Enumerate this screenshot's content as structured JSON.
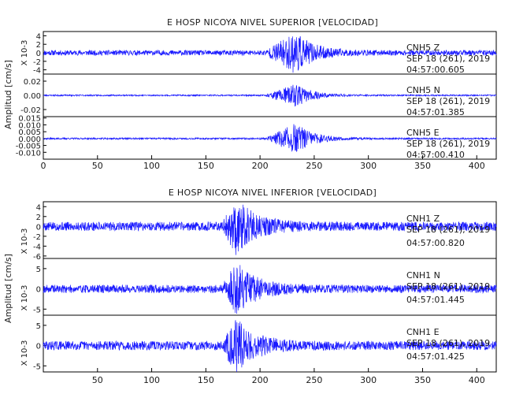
{
  "chart_data": [
    {
      "type": "line",
      "title": "E HOSP NICOYA NIVEL SUPERIOR [VELOCIDAD]",
      "ylabel": "Amplitud [cm/s]",
      "xlim": [
        0,
        418
      ],
      "xticks": [
        0,
        50,
        100,
        150,
        200,
        250,
        300,
        350,
        400
      ],
      "xtick_labels": [
        "0",
        "50",
        "100",
        "150",
        "200",
        "250",
        "300",
        "350",
        "400"
      ],
      "line_color": "#1a1aff",
      "traces": [
        {
          "component": "CNH5   Z",
          "date": "SEP 18 (261), 2019",
          "time": "04:57:00.605",
          "ylim": [
            -5,
            5
          ],
          "y_multiplier": "X 10-3",
          "yticks": [
            -4,
            -2,
            0,
            2,
            4
          ],
          "ytick_labels": [
            "-4",
            "-2",
            "0",
            "2",
            "4"
          ],
          "noise_amp": 0.6,
          "event_start": 205,
          "event_peak": 233,
          "event_amp": 4.5,
          "event_decay": 16,
          "seed": 11
        },
        {
          "component": "CNH5   N",
          "date": "SEP 18 (261), 2019",
          "time": "04:57:01.385",
          "ylim": [
            -0.03,
            0.03
          ],
          "y_multiplier": "",
          "yticks": [
            -0.02,
            0.0,
            0.02
          ],
          "ytick_labels": [
            "-0.02",
            "0.00",
            "0.02"
          ],
          "noise_amp": 0.001,
          "event_start": 205,
          "event_peak": 233,
          "event_amp": 0.016,
          "event_decay": 15,
          "seed": 23
        },
        {
          "component": "CNH5   E",
          "date": "SEP 18 (261), 2019",
          "time": "04:57:00.410",
          "ylim": [
            -0.015,
            0.016
          ],
          "y_multiplier": "",
          "yticks": [
            -0.01,
            -0.005,
            0.0,
            0.005,
            0.01,
            0.015
          ],
          "ytick_labels": [
            "-0.010",
            "-0.005",
            "0.000",
            "0.005",
            "0.010",
            "0.015"
          ],
          "noise_amp": 0.0006,
          "event_start": 205,
          "event_peak": 233,
          "event_amp": 0.011,
          "event_decay": 16,
          "seed": 37
        }
      ]
    },
    {
      "type": "line",
      "title": "E HOSP NICOYA NIVEL INFERIOR [VELOCIDAD]",
      "ylabel": "Amplitud [cm/s]",
      "xlim": [
        0,
        418
      ],
      "xticks": [
        50,
        100,
        150,
        200,
        250,
        300,
        350,
        400
      ],
      "xtick_labels": [
        "50",
        "100",
        "150",
        "200",
        "250",
        "300",
        "350",
        "400"
      ],
      "line_color": "#1a1aff",
      "traces": [
        {
          "component": "CNH1   Z",
          "date": "SEP 18 (261), 2019",
          "time": "04:57:00.820",
          "ylim": [
            -6.5,
            5
          ],
          "y_multiplier": "X 10-3",
          "yticks": [
            -6,
            -4,
            -2,
            0,
            2,
            4
          ],
          "ytick_labels": [
            "-6",
            "-4",
            "-2",
            "0",
            "2",
            "4"
          ],
          "noise_amp": 0.9,
          "event_start": 165,
          "event_peak": 178,
          "event_amp": 5.2,
          "event_decay": 18,
          "seed": 5
        },
        {
          "component": "CNH1   N",
          "date": "SEP 18 (261), 2019",
          "time": "04:57:01.445",
          "ylim": [
            -6.5,
            7.5
          ],
          "y_multiplier": "X 10-3",
          "yticks": [
            -5,
            0,
            5
          ],
          "ytick_labels": [
            "-5",
            "0",
            "5"
          ],
          "noise_amp": 1.0,
          "event_start": 165,
          "event_peak": 178,
          "event_amp": 6.0,
          "event_decay": 18,
          "seed": 19
        },
        {
          "component": "CNH1   E",
          "date": "SEP 18 (261), 2019",
          "time": "04:57:01.425",
          "ylim": [
            -6.5,
            7.5
          ],
          "y_multiplier": "X 10-3",
          "yticks": [
            -5,
            0,
            5
          ],
          "ytick_labels": [
            "-5",
            "0",
            "5"
          ],
          "noise_amp": 1.1,
          "event_start": 165,
          "event_peak": 178,
          "event_amp": 6.0,
          "event_decay": 18,
          "seed": 29
        }
      ]
    }
  ]
}
